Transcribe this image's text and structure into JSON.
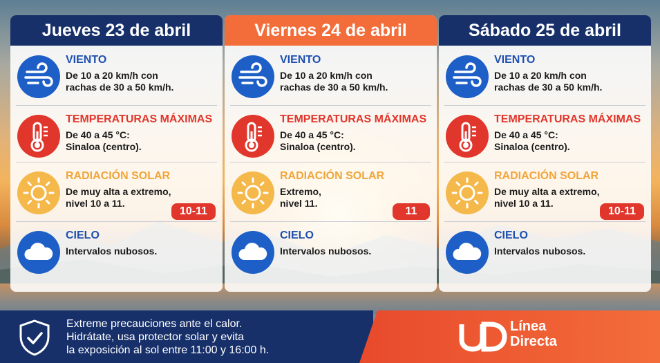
{
  "days": [
    {
      "date": "Jueves 23 de abril",
      "wind": {
        "title": "VIENTO",
        "line1": "De 10 a 20 km/h con",
        "line2": "rachas de 30 a 50 km/h."
      },
      "temp": {
        "title": "TEMPERATURAS MÁXIMAS",
        "line1": "De 40 a 45 °C:",
        "line2": "Sinaloa (centro)."
      },
      "solar": {
        "title": "RADIACIÓN SOLAR",
        "line1": "De muy alta a extremo,",
        "line2": "nivel 10 a 11.",
        "badge": "10-11"
      },
      "sky": {
        "title": "CIELO",
        "line1": "Intervalos nubosos."
      }
    },
    {
      "date": "Viernes 24 de abril",
      "wind": {
        "title": "VIENTO",
        "line1": "De 10 a 20 km/h con",
        "line2": "rachas de 30 a 50 km/h."
      },
      "temp": {
        "title": "TEMPERATURAS MÁXIMAS",
        "line1": "De 40 a 45 °C:",
        "line2": "Sinaloa (centro)."
      },
      "solar": {
        "title": "RADIACIÓN SOLAR",
        "line1": "Extremo,",
        "line2": "nivel 11.",
        "badge": "11"
      },
      "sky": {
        "title": "CIELO",
        "line1": "Intervalos nubosos."
      }
    },
    {
      "date": "Sábado 25 de abril",
      "wind": {
        "title": "VIENTO",
        "line1": "De 10 a 20 km/h con",
        "line2": "rachas de 30 a 50 km/h."
      },
      "temp": {
        "title": "TEMPERATURAS MÁXIMAS",
        "line1": "De 40 a 45 °C:",
        "line2": "Sinaloa (centro)."
      },
      "solar": {
        "title": "RADIACIÓN SOLAR",
        "line1": "De muy alta a extremo,",
        "line2": "nivel 10 a 11.",
        "badge": "10-11"
      },
      "sky": {
        "title": "CIELO",
        "line1": "Intervalos nubosos."
      }
    }
  ],
  "footer": {
    "line1": "Extreme precauciones ante el calor.",
    "line2": "Hidrátate, usa protector solar y evita",
    "line3": "la exposición al sol entre 11:00 y 16:00 h."
  },
  "brand": {
    "line1": "Línea",
    "line2": "Directa"
  },
  "colors": {
    "navy": "#17306a",
    "orange": "#f26d3a",
    "wind_blue": "#1d5fc6",
    "temp_red": "#e1362c",
    "solar_yellow": "#f5b84a"
  },
  "icons": [
    "wind-icon",
    "thermometer-icon",
    "sun-icon",
    "cloud-icon",
    "shield-check-icon",
    "linea-directa-logo"
  ]
}
